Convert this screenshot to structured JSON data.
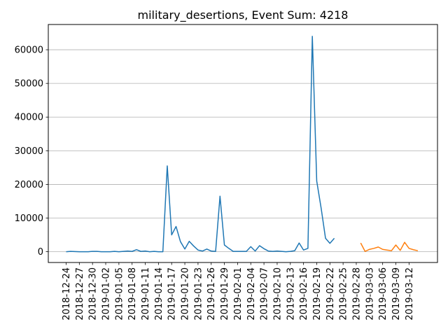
{
  "chart_data": {
    "type": "line",
    "title": "military_desertions, Event Sum: 4218",
    "xlabel": "",
    "ylabel": "",
    "ylim": [
      -3200,
      67500
    ],
    "grid": {
      "y": true,
      "x": false
    },
    "x_tick_labels": [
      "2018-12-24",
      "2018-12-27",
      "2018-12-30",
      "2019-01-02",
      "2019-01-05",
      "2019-01-08",
      "2019-01-11",
      "2019-01-14",
      "2019-01-17",
      "2019-01-20",
      "2019-01-23",
      "2019-01-26",
      "2019-01-29",
      "2019-02-01",
      "2019-02-04",
      "2019-02-07",
      "2019-02-10",
      "2019-02-13",
      "2019-02-16",
      "2019-02-19",
      "2019-02-22",
      "2019-02-25",
      "2019-02-28",
      "2019-03-03",
      "2019-03-06",
      "2019-03-09",
      "2019-03-12"
    ],
    "y_ticks": [
      0,
      10000,
      20000,
      30000,
      40000,
      50000,
      60000
    ],
    "y_tick_labels": [
      "0",
      "10000",
      "20000",
      "30000",
      "40000",
      "50000",
      "60000"
    ],
    "series": [
      {
        "color": "#1f77b4",
        "start_date": "2018-12-24",
        "values": [
          0,
          100,
          50,
          0,
          0,
          0,
          100,
          100,
          0,
          0,
          0,
          100,
          0,
          100,
          200,
          100,
          600,
          100,
          200,
          0,
          100,
          0,
          0,
          25500,
          5000,
          7500,
          3000,
          800,
          3100,
          1700,
          500,
          200,
          800,
          200,
          100,
          16500,
          2000,
          1000,
          100,
          100,
          100,
          100,
          1500,
          200,
          1800,
          900,
          200,
          100,
          200,
          100,
          0,
          100,
          300,
          2600,
          500,
          1000,
          64000,
          21000,
          13000,
          4000,
          2500,
          4000
        ]
      },
      {
        "color": "#ff7f0e",
        "start_date": "2019-03-01",
        "values": [
          2600,
          100,
          700,
          1000,
          1400,
          700,
          500,
          300,
          2000,
          400,
          2800,
          1000,
          600,
          300
        ]
      }
    ]
  }
}
